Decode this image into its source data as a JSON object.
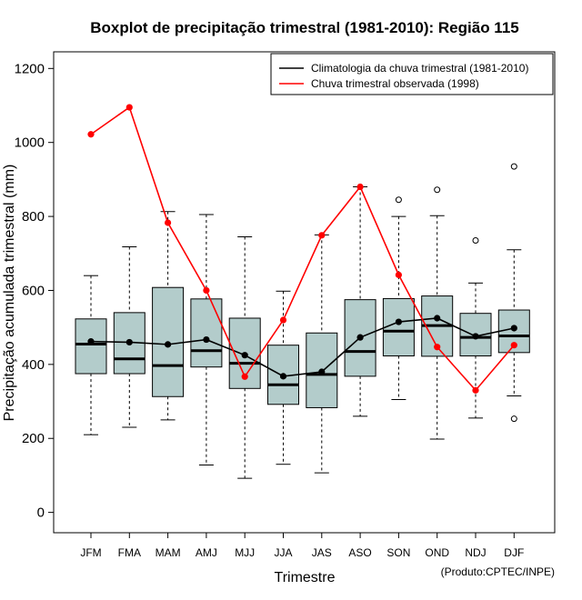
{
  "chart_data": {
    "type": "boxplot",
    "title": "Boxplot de precipitação trimestral (1981-2010): Região 115",
    "xlabel": "Trimestre",
    "ylabel": "Precipitação acumulada trimestral (mm)",
    "credit": "(Produto:CPTEC/INPE)",
    "ylim": [
      -55,
      1245
    ],
    "yticks": [
      0,
      200,
      400,
      600,
      800,
      1000,
      1200
    ],
    "categories": [
      "JFM",
      "FMA",
      "MAM",
      "AMJ",
      "MJJ",
      "JJA",
      "JAS",
      "ASO",
      "SON",
      "OND",
      "NDJ",
      "DJF"
    ],
    "boxes": [
      {
        "whisker_low": 210,
        "q1": 375,
        "median": 455,
        "q3": 523,
        "whisker_high": 640,
        "outliers": []
      },
      {
        "whisker_low": 230,
        "q1": 375,
        "median": 415,
        "q3": 540,
        "whisker_high": 718,
        "outliers": []
      },
      {
        "whisker_low": 250,
        "q1": 313,
        "median": 397,
        "q3": 608,
        "whisker_high": 813,
        "outliers": []
      },
      {
        "whisker_low": 128,
        "q1": 393,
        "median": 437,
        "q3": 577,
        "whisker_high": 805,
        "outliers": []
      },
      {
        "whisker_low": 92,
        "q1": 335,
        "median": 403,
        "q3": 525,
        "whisker_high": 745,
        "outliers": []
      },
      {
        "whisker_low": 130,
        "q1": 292,
        "median": 345,
        "q3": 452,
        "whisker_high": 598,
        "outliers": []
      },
      {
        "whisker_low": 107,
        "q1": 283,
        "median": 373,
        "q3": 485,
        "whisker_high": 750,
        "outliers": []
      },
      {
        "whisker_low": 260,
        "q1": 368,
        "median": 435,
        "q3": 575,
        "whisker_high": 880,
        "outliers": []
      },
      {
        "whisker_low": 305,
        "q1": 423,
        "median": 490,
        "q3": 578,
        "whisker_high": 800,
        "outliers": [
          845
        ]
      },
      {
        "whisker_low": 198,
        "q1": 422,
        "median": 505,
        "q3": 585,
        "whisker_high": 802,
        "outliers": [
          872
        ]
      },
      {
        "whisker_low": 255,
        "q1": 423,
        "median": 473,
        "q3": 538,
        "whisker_high": 620,
        "outliers": [
          735
        ]
      },
      {
        "whisker_low": 315,
        "q1": 432,
        "median": 477,
        "q3": 547,
        "whisker_high": 710,
        "outliers": [
          935,
          253
        ]
      }
    ],
    "series": [
      {
        "name": "Climatologia da chuva trimestral (1981-2010)",
        "color": "#000000",
        "values": [
          462,
          460,
          454,
          467,
          425,
          368,
          380,
          473,
          515,
          525,
          476,
          498
        ]
      },
      {
        "name": "Chuva trimestral observada (1998)",
        "color": "#ff0000",
        "values": [
          1022,
          1095,
          783,
          600,
          367,
          520,
          749,
          880,
          642,
          447,
          330,
          452
        ]
      }
    ],
    "legend_position": "top-right",
    "box_fill": "#b3cccb"
  }
}
